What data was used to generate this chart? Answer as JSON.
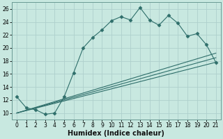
{
  "xlabel": "Humidex (Indice chaleur)",
  "bg_color": "#c8e8e0",
  "line_color": "#2e6e6a",
  "grid_color": "#aed0cc",
  "xlim": [
    -0.5,
    21.5
  ],
  "ylim": [
    9.0,
    27.0
  ],
  "xticks": [
    0,
    1,
    2,
    3,
    4,
    5,
    6,
    7,
    8,
    9,
    10,
    11,
    12,
    13,
    14,
    15,
    16,
    17,
    18,
    19,
    20,
    21
  ],
  "yticks": [
    10,
    12,
    14,
    16,
    18,
    20,
    22,
    24,
    26
  ],
  "series1_x": [
    0,
    1,
    2,
    3,
    4,
    5,
    6,
    7,
    8,
    9,
    10,
    11,
    12,
    13,
    14,
    15,
    16,
    17,
    18,
    19,
    20,
    21
  ],
  "series1_y": [
    12.5,
    10.8,
    10.5,
    9.8,
    10.0,
    12.5,
    16.2,
    20.0,
    21.6,
    22.8,
    24.2,
    24.8,
    24.3,
    26.2,
    24.3,
    23.5,
    25.0,
    23.8,
    21.8,
    22.2,
    20.5,
    17.8
  ],
  "series2_x": [
    0,
    21
  ],
  "series2_y": [
    10.0,
    19.2
  ],
  "series3_x": [
    0,
    21
  ],
  "series3_y": [
    10.0,
    17.8
  ],
  "series4_x": [
    0,
    21
  ],
  "series4_y": [
    10.0,
    18.5
  ],
  "tick_fontsize": 5.5,
  "xlabel_fontsize": 7
}
